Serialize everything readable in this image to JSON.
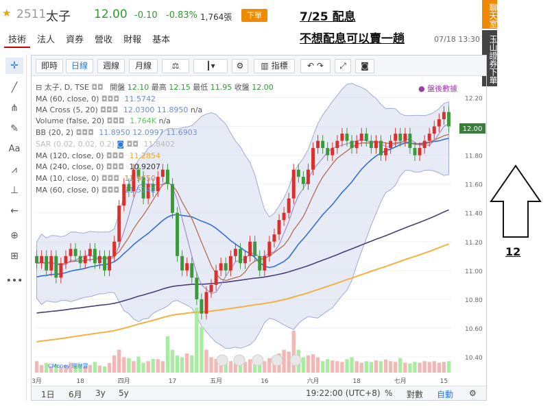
{
  "header": {
    "stock_code": "2511",
    "stock_name": "太子",
    "price": "12.00",
    "change": "-0.10",
    "change_pct": "-0.83%",
    "volume": "1,764張",
    "order_button": "下單",
    "annotation_1": "7/25 配息",
    "annotation_2": "不想配息可以賣一趟",
    "datetime": "07/18 13:30",
    "color_down": "#2e9a2e",
    "color_up": "#d9302b"
  },
  "tabs": [
    "技術",
    "法人",
    "資券",
    "營收",
    "財報",
    "基本"
  ],
  "side_buttons": {
    "chatroom": "聊天室",
    "broker": "玉山證券下單"
  },
  "toolbar": {
    "intraday": "即時",
    "daily": "日線",
    "weekly": "週線",
    "monthly": "月線",
    "indicator": "指標",
    "active": "日線"
  },
  "legend": {
    "main": "太子, D, TSE",
    "open_label": "開盤",
    "open": "12.10",
    "high_label": "最高",
    "high": "12.15",
    "low_label": "最低",
    "low": "11.95",
    "close_label": "收盤",
    "close": "12.00",
    "post_div": "盤後數據",
    "lines": [
      {
        "label": "MA (60, close, 0)",
        "value": "11.5742",
        "color": "#6b8fd6"
      },
      {
        "label": "MA Cross (5, 20)",
        "value": "12.0300",
        "value2": "11.8950",
        "extra": "n/a",
        "color": "#6b8fd6"
      },
      {
        "label": "Volume (false, 20)",
        "value": "1.764K",
        "extra": "n/a",
        "color": "#5fc45f"
      },
      {
        "label": "BB (20, 2)",
        "value": "11.8950",
        "value2": "12.0997",
        "value3": "11.6903",
        "color": "#6b8fd6"
      },
      {
        "label": "SAR (0.02, 0.02, 0.2)",
        "value": "11.8402",
        "color": "#2a4d8f"
      },
      {
        "label": "MA (120, close, 0)",
        "value": "11.2854",
        "color": "#f5a623"
      },
      {
        "label": "MA (240, close, 0)",
        "value": "10.9207",
        "color": "#333333"
      },
      {
        "label": "MA (10, close, 0)",
        "value": "11.9650",
        "color": "#c8875a"
      },
      {
        "label": "MA (60, close, 0)",
        "value": "11.5742",
        "color": "#6b8fd6"
      }
    ]
  },
  "y_axis": [
    "12.20",
    "12.00",
    "11.80",
    "11.60",
    "11.40",
    "11.20",
    "11.00",
    "10.80",
    "10.60",
    "10.40"
  ],
  "last_price_tag": "12.00",
  "x_axis": [
    "3月",
    "18",
    "四月",
    "17",
    "五月",
    "16",
    "六月",
    "18",
    "七月",
    "15"
  ],
  "bottom": {
    "range_1d": "1日",
    "range_6m": "6月",
    "range_3y": "3y",
    "range_5y": "5y",
    "time": "19:22:00 (UTC+8)",
    "pct": "%",
    "log": "對數",
    "auto": "自動"
  },
  "watermark": "CMoney 理財寶",
  "right_annotation_number": "12",
  "chart_data": {
    "type": "candlestick",
    "title": "太子, D, TSE",
    "ylim": [
      10.3,
      12.25
    ],
    "closes": [
      11.05,
      11.1,
      11.0,
      11.1,
      10.95,
      11.05,
      11.1,
      11.15,
      11.1,
      11.05,
      11.1,
      11.15,
      11.05,
      11.1,
      11.0,
      11.1,
      11.2,
      11.45,
      11.6,
      11.55,
      11.7,
      11.65,
      11.5,
      11.6,
      11.55,
      11.65,
      11.7,
      11.6,
      11.4,
      11.1,
      11.0,
      11.05,
      10.95,
      10.8,
      10.7,
      10.85,
      10.9,
      11.0,
      11.05,
      11.0,
      11.1,
      11.15,
      11.05,
      11.1,
      11.2,
      11.1,
      11.0,
      11.1,
      11.2,
      11.25,
      11.35,
      11.4,
      11.5,
      11.7,
      11.65,
      11.6,
      11.7,
      11.85,
      11.9,
      11.85,
      11.8,
      11.85,
      11.9,
      11.95,
      11.9,
      11.85,
      11.9,
      11.95,
      11.9,
      11.85,
      11.9,
      11.8,
      11.85,
      11.9,
      11.95,
      11.9,
      11.95,
      11.85,
      11.8,
      11.85,
      11.9,
      11.95,
      12.0,
      12.05,
      12.1,
      12.0
    ],
    "volumes": [
      30,
      20,
      25,
      18,
      22,
      15,
      20,
      26,
      18,
      22,
      15,
      20,
      28,
      18,
      16,
      25,
      45,
      60,
      40,
      38,
      30,
      42,
      26,
      30,
      36,
      35,
      30,
      95,
      60,
      45,
      40,
      50,
      45,
      170,
      120,
      60,
      40,
      36,
      30,
      28,
      30,
      25,
      26,
      28,
      35,
      25,
      22,
      30,
      38,
      42,
      50,
      60,
      55,
      110,
      60,
      40,
      45,
      48,
      40,
      30,
      35,
      32,
      30,
      28,
      35,
      40,
      30,
      26,
      30,
      28,
      32,
      30,
      34,
      30,
      28,
      38,
      26,
      24,
      28,
      26,
      30,
      28,
      30,
      26,
      28,
      30
    ]
  }
}
